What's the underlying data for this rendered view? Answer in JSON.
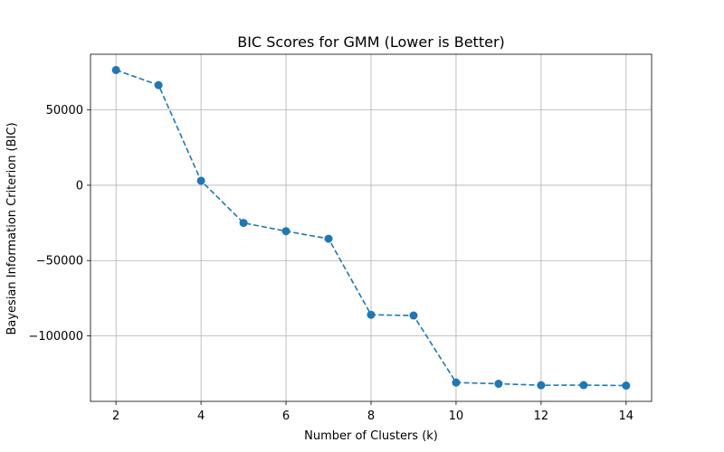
{
  "chart_data": {
    "type": "line",
    "title": "BIC Scores for GMM (Lower is Better)",
    "xlabel": "Number of Clusters (k)",
    "ylabel": "Bayesian Information Criterion (BIC)",
    "x": [
      2,
      3,
      4,
      5,
      6,
      7,
      8,
      9,
      10,
      11,
      12,
      13,
      14
    ],
    "series": [
      {
        "values": [
          76500,
          66500,
          3000,
          -25000,
          -30500,
          -35500,
          -86000,
          -86500,
          -131000,
          -131800,
          -132800,
          -132700,
          -133000
        ],
        "color": "#1f77b4",
        "line_style": "dashed",
        "marker": "circle"
      }
    ],
    "xlim": [
      1.4,
      14.6
    ],
    "ylim": [
      -143500,
      87000
    ],
    "x_ticks": [
      2,
      4,
      6,
      8,
      10,
      12,
      14
    ],
    "x_tick_labels": [
      "2",
      "4",
      "6",
      "8",
      "10",
      "12",
      "14"
    ],
    "y_ticks": [
      50000,
      0,
      -50000,
      -100000
    ],
    "y_tick_labels": [
      "50000",
      "0",
      "−50000",
      "−100000"
    ],
    "grid": true
  }
}
